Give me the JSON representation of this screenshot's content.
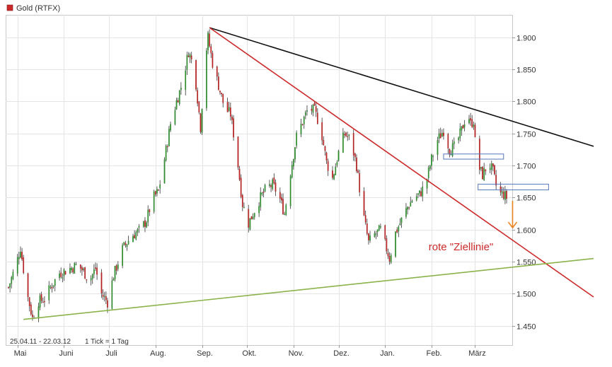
{
  "chart_data": {
    "type": "candlestick",
    "title": "Gold (RTFX)",
    "range_label": "25.04.11 - 22.03.12",
    "tick_label": "1 Tick = 1 Tag",
    "ylim": [
      1420,
      1935
    ],
    "y_ticks": [
      "1.900",
      "1.850",
      "1.800",
      "1.750",
      "1.700",
      "1.650",
      "1.600",
      "1.550",
      "1.500",
      "1.450"
    ],
    "y_tick_values": [
      1900,
      1850,
      1800,
      1750,
      1700,
      1650,
      1600,
      1550,
      1500,
      1450
    ],
    "x_ticks": [
      "Mai",
      "Juni",
      "Juli",
      "Aug.",
      "Sep.",
      "Okt.",
      "Nov.",
      "Dez.",
      "Jan.",
      "Feb.",
      "März"
    ],
    "x_tick_days": [
      6,
      37,
      67,
      98,
      129,
      159,
      190,
      220,
      251,
      282,
      311
    ],
    "x_range_days": [
      0,
      332
    ],
    "grid": true,
    "legend_position": "top-left",
    "colors": {
      "up": "#2e8b2e",
      "down": "#b22222",
      "black_trendline": "#111111",
      "red_trendline": "#cc2a2a",
      "green_trendline": "#8ab34a",
      "arrow": "#e8821e",
      "box": "#5577bb",
      "annotation": "#cc2a2a",
      "legend_marker": "#cc2a2a"
    },
    "price_anchors": [
      [
        0,
        1510
      ],
      [
        5,
        1545
      ],
      [
        8,
        1572
      ],
      [
        12,
        1505
      ],
      [
        16,
        1462
      ],
      [
        20,
        1488
      ],
      [
        24,
        1492
      ],
      [
        28,
        1510
      ],
      [
        34,
        1532
      ],
      [
        40,
        1538
      ],
      [
        46,
        1545
      ],
      [
        50,
        1535
      ],
      [
        54,
        1520
      ],
      [
        58,
        1540
      ],
      [
        62,
        1500
      ],
      [
        66,
        1487
      ],
      [
        70,
        1528
      ],
      [
        76,
        1570
      ],
      [
        82,
        1590
      ],
      [
        88,
        1600
      ],
      [
        92,
        1615
      ],
      [
        96,
        1648
      ],
      [
        100,
        1660
      ],
      [
        104,
        1710
      ],
      [
        108,
        1765
      ],
      [
        112,
        1800
      ],
      [
        116,
        1830
      ],
      [
        120,
        1878
      ],
      [
        124,
        1850
      ],
      [
        128,
        1760
      ],
      [
        131,
        1865
      ],
      [
        133,
        1900
      ],
      [
        136,
        1860
      ],
      [
        140,
        1825
      ],
      [
        144,
        1790
      ],
      [
        148,
        1780
      ],
      [
        152,
        1720
      ],
      [
        156,
        1640
      ],
      [
        160,
        1610
      ],
      [
        164,
        1630
      ],
      [
        168,
        1650
      ],
      [
        172,
        1665
      ],
      [
        176,
        1670
      ],
      [
        180,
        1655
      ],
      [
        184,
        1625
      ],
      [
        188,
        1690
      ],
      [
        192,
        1745
      ],
      [
        196,
        1768
      ],
      [
        200,
        1790
      ],
      [
        204,
        1785
      ],
      [
        208,
        1760
      ],
      [
        212,
        1705
      ],
      [
        216,
        1680
      ],
      [
        220,
        1720
      ],
      [
        224,
        1750
      ],
      [
        228,
        1740
      ],
      [
        232,
        1700
      ],
      [
        236,
        1630
      ],
      [
        240,
        1580
      ],
      [
        244,
        1592
      ],
      [
        248,
        1600
      ],
      [
        252,
        1570
      ],
      [
        254,
        1555
      ],
      [
        258,
        1595
      ],
      [
        262,
        1615
      ],
      [
        266,
        1635
      ],
      [
        270,
        1650
      ],
      [
        274,
        1655
      ],
      [
        278,
        1670
      ],
      [
        282,
        1710
      ],
      [
        286,
        1740
      ],
      [
        290,
        1755
      ],
      [
        294,
        1725
      ],
      [
        298,
        1730
      ],
      [
        302,
        1755
      ],
      [
        306,
        1785
      ],
      [
        308,
        1765
      ],
      [
        310,
        1770
      ],
      [
        312,
        1705
      ],
      [
        316,
        1685
      ],
      [
        320,
        1705
      ],
      [
        323,
        1690
      ],
      [
        326,
        1658
      ],
      [
        330,
        1655
      ],
      [
        332,
        1650
      ]
    ],
    "trendlines": [
      {
        "color": "black",
        "from": [
          134,
          1915
        ],
        "to": [
          390,
          1730
        ]
      },
      {
        "color": "red",
        "from": [
          134,
          1915
        ],
        "to": [
          390,
          1495
        ]
      },
      {
        "color": "green",
        "from": [
          10,
          1460
        ],
        "to": [
          390,
          1555
        ]
      }
    ],
    "boxes": [
      {
        "from": [
          290,
          1718
        ],
        "to": [
          330,
          1710
        ]
      },
      {
        "from": [
          313,
          1671
        ],
        "to": [
          360,
          1662
        ]
      }
    ],
    "arrow": {
      "at_day": 336,
      "from": 1645,
      "to": 1603
    },
    "annotations": [
      {
        "text": "rote \"Ziellinie\"",
        "day": 280,
        "value": 1568
      }
    ]
  }
}
